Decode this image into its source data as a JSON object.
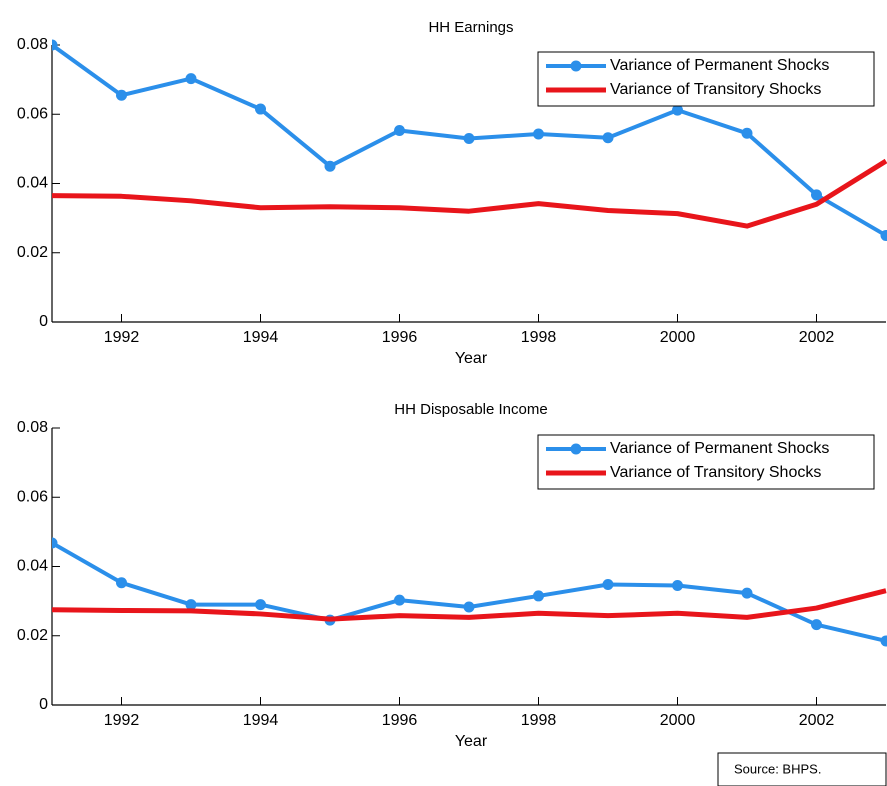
{
  "chart_data": [
    {
      "type": "line",
      "title": "HH Earnings",
      "x_label": "Year",
      "x": [
        1991,
        1992,
        1993,
        1994,
        1995,
        1996,
        1997,
        1998,
        1999,
        2000,
        2001,
        2002,
        2003
      ],
      "xlim": [
        1991,
        2003
      ],
      "xticks": [
        1992,
        1994,
        1996,
        1998,
        2000,
        2002
      ],
      "ylim": [
        0,
        0.08
      ],
      "yticks": [
        0,
        0.02,
        0.04,
        0.06,
        0.08
      ],
      "legend": "upper right",
      "grid": false,
      "series": [
        {
          "name": "Variance of Permanent Shocks",
          "color": "#2b8fea",
          "markers": true,
          "values": [
            0.08,
            0.0655,
            0.0703,
            0.0615,
            0.045,
            0.0553,
            0.053,
            0.0543,
            0.0532,
            0.0612,
            0.0545,
            0.0367,
            0.025
          ]
        },
        {
          "name": "Variance of Transitory Shocks",
          "color": "#e8151b",
          "markers": false,
          "values": [
            0.0365,
            0.0363,
            0.035,
            0.033,
            0.0333,
            0.033,
            0.032,
            0.0342,
            0.0322,
            0.0313,
            0.0277,
            0.034,
            0.0465
          ]
        }
      ]
    },
    {
      "type": "line",
      "title": "HH Disposable Income",
      "x_label": "Year",
      "x": [
        1991,
        1992,
        1993,
        1994,
        1995,
        1996,
        1997,
        1998,
        1999,
        2000,
        2001,
        2002,
        2003
      ],
      "xlim": [
        1991,
        2003
      ],
      "xticks": [
        1992,
        1994,
        1996,
        1998,
        2000,
        2002
      ],
      "ylim": [
        0,
        0.08
      ],
      "yticks": [
        0,
        0.02,
        0.04,
        0.06,
        0.08
      ],
      "legend": "upper right",
      "grid": false,
      "series": [
        {
          "name": "Variance of Permanent Shocks",
          "color": "#2b8fea",
          "markers": true,
          "values": [
            0.0468,
            0.0353,
            0.029,
            0.029,
            0.0245,
            0.0303,
            0.0283,
            0.0315,
            0.0348,
            0.0345,
            0.0323,
            0.0232,
            0.0185
          ]
        },
        {
          "name": "Variance of Transitory Shocks",
          "color": "#e8151b",
          "markers": false,
          "values": [
            0.0275,
            0.0273,
            0.0272,
            0.0263,
            0.0248,
            0.0258,
            0.0253,
            0.0265,
            0.0258,
            0.0265,
            0.0253,
            0.028,
            0.033
          ]
        }
      ]
    }
  ],
  "source_note": "Source: BHPS."
}
